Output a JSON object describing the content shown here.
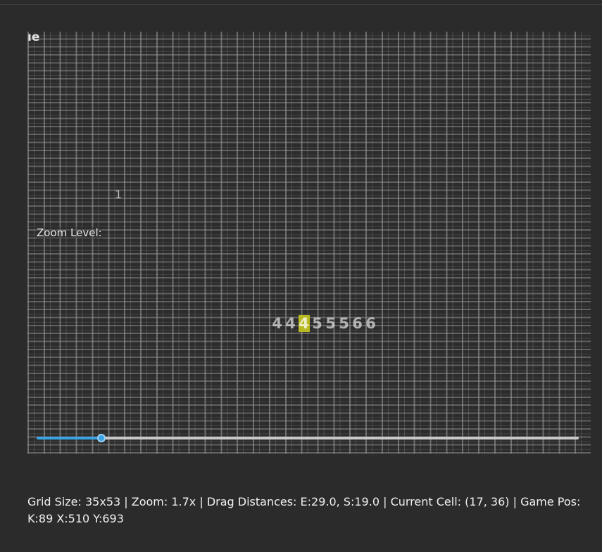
{
  "canvas": {
    "corner_glyph": "ıe",
    "small_glyph": "1",
    "zoom_label": "Zoom Level:",
    "numbers": [
      "4",
      "4",
      "4",
      "5",
      "5",
      "5",
      "6",
      "6"
    ],
    "highlighted_index": 2,
    "highlight_color": "#b8b820"
  },
  "slider": {
    "value_fraction": 0.12,
    "accent_color": "#3aa3e3"
  },
  "status": {
    "text": "Grid Size: 35x53 | Zoom: 1.7x | Drag Distances: E:29.0, S:19.0 | Current Cell: (17, 36) | Game Pos: K:89 X:510 Y:693"
  }
}
